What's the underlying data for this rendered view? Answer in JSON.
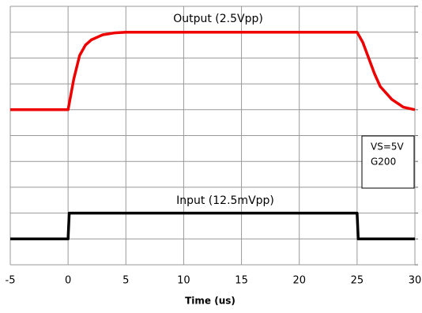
{
  "chart_data": {
    "type": "line",
    "x_label": "Time (us)",
    "xlim": [
      -5,
      30
    ],
    "xticks": [
      -5,
      0,
      5,
      10,
      15,
      20,
      25,
      30
    ],
    "ylim": [
      0,
      10
    ],
    "yticks": [
      0,
      1,
      2,
      3,
      4,
      5,
      6,
      7,
      8,
      9,
      10
    ],
    "grid": true,
    "series": [
      {
        "color": "#ee0000",
        "x": [
          -5,
          0,
          0.5,
          1,
          1.5,
          2,
          3,
          4,
          5,
          25,
          25.5,
          26,
          26.5,
          27,
          28,
          29,
          30
        ],
        "values": [
          6,
          6,
          7.2,
          8.1,
          8.5,
          8.7,
          8.9,
          8.97,
          9,
          9,
          8.6,
          8,
          7.4,
          6.9,
          6.4,
          6.1,
          6
        ]
      },
      {
        "color": "#000000",
        "x": [
          -5,
          0,
          0.1,
          25,
          25.1,
          30
        ],
        "values": [
          1,
          1,
          2,
          2,
          1,
          1
        ]
      }
    ],
    "annotations": [
      "Output (2.5Vpp)",
      "Input (12.5mVpp)"
    ],
    "box_text": [
      "VS=5V",
      "G200"
    ]
  }
}
